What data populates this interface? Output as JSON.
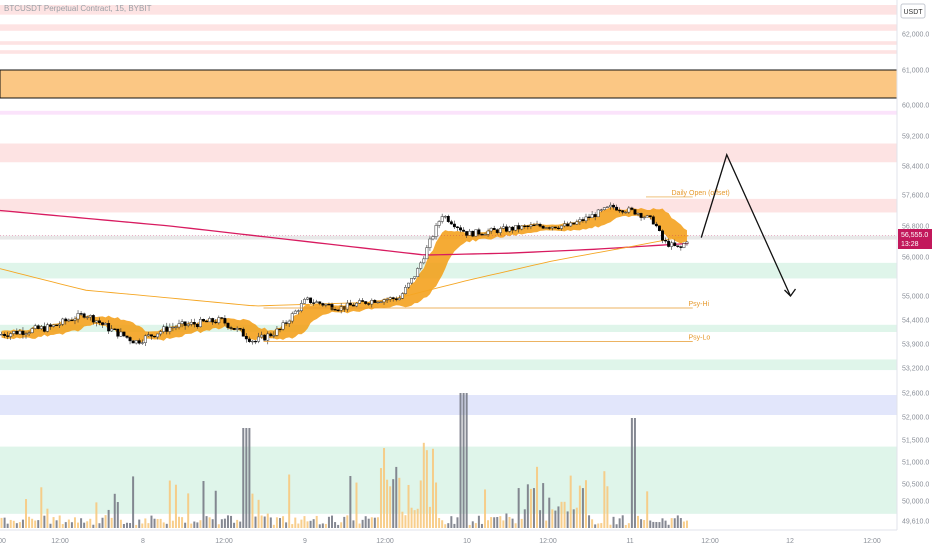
{
  "header": {
    "title": "BTCUSDT Perpetual Contract, 15, BYBIT",
    "currency": "USDT"
  },
  "price_tag": {
    "price": "56,555.0",
    "countdown": "13:28"
  },
  "colors": {
    "up": "#26a69a",
    "down": "#000000",
    "ema_red": "#d81b60",
    "ema_band": "#f39c12",
    "orange_line": "#f5a623",
    "level_label": "#e69a2e",
    "vol_orange": "#f7c97f",
    "vol_gray": "#787b86"
  },
  "chart_data": {
    "type": "candlestick",
    "x_ticks": [
      "00",
      "12:00",
      "8",
      "12:00",
      "9",
      "12:00",
      "10",
      "12:00",
      "11",
      "12:00",
      "12",
      "12:00"
    ],
    "y_ticks": [
      "62,000.0",
      "61,000.0",
      "60,000.0",
      "59,200.0",
      "58,400.0",
      "57,600.0",
      "56,800.0",
      "56,000.0",
      "55,000.0",
      "54,400.0",
      "53,900.0",
      "53,200.0",
      "52,600.0",
      "52,000.0",
      "51,500.0",
      "51,000.0",
      "50,500.0",
      "50,000.0",
      "49,610.0"
    ],
    "price_anchors": [
      {
        "t": 0,
        "p": 54100
      },
      {
        "t": 0.06,
        "p": 54250
      },
      {
        "t": 0.1,
        "p": 54550
      },
      {
        "t": 0.13,
        "p": 54200
      },
      {
        "t": 0.16,
        "p": 53950
      },
      {
        "t": 0.2,
        "p": 54250
      },
      {
        "t": 0.26,
        "p": 54400
      },
      {
        "t": 0.3,
        "p": 53950
      },
      {
        "t": 0.33,
        "p": 54200
      },
      {
        "t": 0.36,
        "p": 54900
      },
      {
        "t": 0.4,
        "p": 54700
      },
      {
        "t": 0.44,
        "p": 54900
      },
      {
        "t": 0.47,
        "p": 54950
      },
      {
        "t": 0.49,
        "p": 55600
      },
      {
        "t": 0.52,
        "p": 57100
      },
      {
        "t": 0.55,
        "p": 56600
      },
      {
        "t": 0.59,
        "p": 56700
      },
      {
        "t": 0.63,
        "p": 56800
      },
      {
        "t": 0.67,
        "p": 56800
      },
      {
        "t": 0.7,
        "p": 57100
      },
      {
        "t": 0.72,
        "p": 57300
      },
      {
        "t": 0.75,
        "p": 57150
      },
      {
        "t": 0.77,
        "p": 56900
      },
      {
        "t": 0.78,
        "p": 56400
      },
      {
        "t": 0.8,
        "p": 56200
      },
      {
        "t": 0.81,
        "p": 56500
      }
    ],
    "ema_red_anchors": [
      {
        "t": 0,
        "p": 57200
      },
      {
        "t": 0.2,
        "p": 56800
      },
      {
        "t": 0.4,
        "p": 56300
      },
      {
        "t": 0.5,
        "p": 56050
      },
      {
        "t": 0.6,
        "p": 56100
      },
      {
        "t": 0.7,
        "p": 56200
      },
      {
        "t": 0.81,
        "p": 56350
      }
    ],
    "orange_line_anchors": [
      {
        "t": 0,
        "p": 55700
      },
      {
        "t": 0.1,
        "p": 55150
      },
      {
        "t": 0.3,
        "p": 54750
      },
      {
        "t": 0.45,
        "p": 54850
      },
      {
        "t": 0.55,
        "p": 55400
      },
      {
        "t": 0.65,
        "p": 55900
      },
      {
        "t": 0.75,
        "p": 56300
      },
      {
        "t": 0.81,
        "p": 56550
      }
    ],
    "projection": [
      {
        "t": 0.825,
        "p": 56500
      },
      {
        "t": 0.855,
        "p": 58700
      },
      {
        "t": 0.93,
        "p": 55000
      }
    ],
    "levels": [
      {
        "label": "Daily Open (offset)",
        "p": 57550,
        "t": 0.79
      },
      {
        "label": "Psy-Hi",
        "p": 54700,
        "t": 0.81
      },
      {
        "label": "Psy-Lo",
        "p": 53950,
        "t": 0.81
      }
    ],
    "zones": [
      {
        "kind": "red",
        "from": 62300,
        "to": 62450
      },
      {
        "kind": "red",
        "from": 62050,
        "to": 62150
      },
      {
        "kind": "red",
        "from": 61700,
        "to": 61800
      },
      {
        "kind": "red",
        "from": 61450,
        "to": 61550
      },
      {
        "kind": "orange",
        "from": 60200,
        "to": 61000
      },
      {
        "kind": "pink",
        "from": 59750,
        "to": 59850
      },
      {
        "kind": "red",
        "from": 58500,
        "to": 59000
      },
      {
        "kind": "red",
        "from": 57150,
        "to": 57500
      },
      {
        "kind": "gray",
        "from": 56450,
        "to": 56550
      },
      {
        "kind": "green",
        "from": 55450,
        "to": 55850
      },
      {
        "kind": "green",
        "from": 54150,
        "to": 54300
      },
      {
        "kind": "green",
        "from": 53150,
        "to": 53450
      },
      {
        "kind": "blue",
        "from": 52050,
        "to": 52550
      },
      {
        "kind": "green",
        "from": 49750,
        "to": 51350
      }
    ]
  }
}
